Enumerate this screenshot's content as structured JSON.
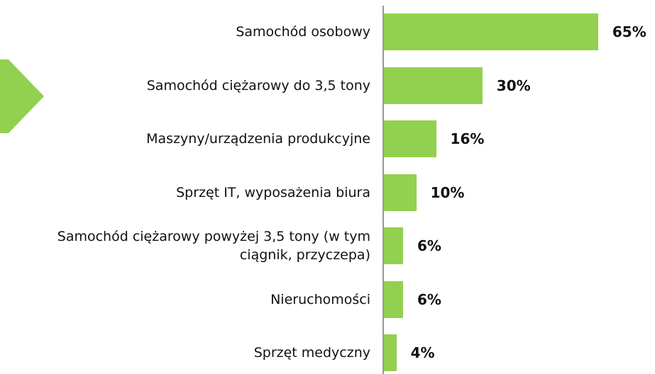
{
  "chart_data": {
    "type": "bar",
    "orientation": "horizontal",
    "categories": [
      "Samochód osobowy",
      "Samochód ciężarowy do 3,5 tony",
      "Maszyny/urządzenia produkcyjne",
      "Sprzęt IT, wyposażenia biura",
      "Samochód ciężarowy powyżej 3,5 tony (w tym ciągnik, przyczepa)",
      "Nieruchomości",
      "Sprzęt medyczny"
    ],
    "values": [
      65,
      30,
      16,
      10,
      6,
      6,
      4
    ],
    "value_labels": [
      "65%",
      "30%",
      "16%",
      "10%",
      "6%",
      "6%",
      "4%"
    ],
    "color": "#92d050"
  }
}
